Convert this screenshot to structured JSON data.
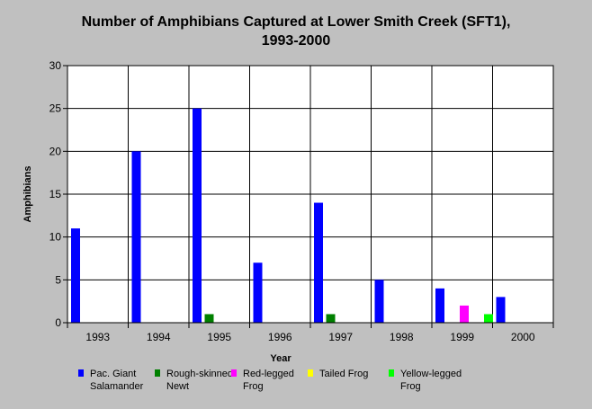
{
  "chart_data": {
    "type": "bar",
    "title_lines": [
      "Number of Amphibians Captured at Lower Smith Creek (SFT1),",
      "1993-2000"
    ],
    "xlabel": "Year",
    "ylabel": "Amphibians",
    "categories": [
      "1993",
      "1994",
      "1995",
      "1996",
      "1997",
      "1998",
      "1999",
      "2000"
    ],
    "ylim": [
      0,
      30
    ],
    "yticks": [
      0,
      5,
      10,
      15,
      20,
      25,
      30
    ],
    "grid": true,
    "legend_position": "bottom",
    "series": [
      {
        "name": "Pac. Giant Salamander",
        "legend_lines": [
          "Pac. Giant",
          "Salamander"
        ],
        "color": "#0000ff",
        "values": [
          11,
          20,
          25,
          7,
          14,
          5,
          4,
          3
        ]
      },
      {
        "name": "Rough-skinned Newt",
        "legend_lines": [
          "Rough-skinned",
          "Newt"
        ],
        "color": "#008000",
        "values": [
          0,
          0,
          1,
          0,
          1,
          0,
          0,
          0
        ]
      },
      {
        "name": "Red-legged Frog",
        "legend_lines": [
          "Red-legged",
          "Frog"
        ],
        "color": "#ff00ff",
        "values": [
          0,
          0,
          0,
          0,
          0,
          0,
          2,
          0
        ]
      },
      {
        "name": "Tailed Frog",
        "legend_lines": [
          "Tailed Frog"
        ],
        "color": "#ffff00",
        "values": [
          0,
          0,
          0,
          0,
          0,
          0,
          0,
          0
        ]
      },
      {
        "name": "Yellow-legged Frog",
        "legend_lines": [
          "Yellow-legged",
          "Frog"
        ],
        "color": "#00ff00",
        "values": [
          0,
          0,
          0,
          0,
          0,
          0,
          1,
          0
        ]
      }
    ]
  }
}
